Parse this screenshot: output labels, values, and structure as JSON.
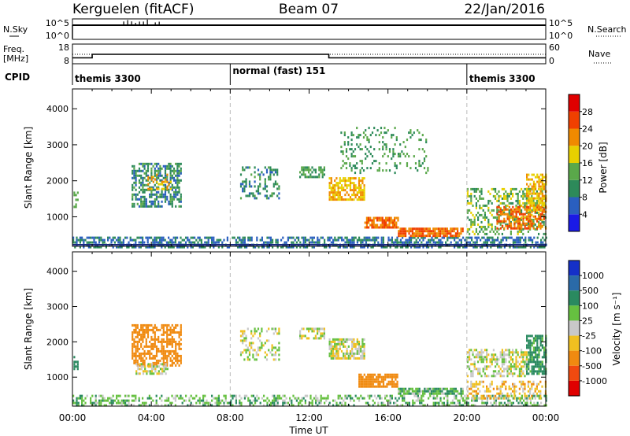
{
  "header": {
    "station": "Kerguelen (fitACF)",
    "beam": "Beam 07",
    "date": "22/Jan/2016"
  },
  "top_panel": {
    "left_label": "N.Sky",
    "right_label": "N.Search",
    "left_ticks": [
      "10^5",
      "10^0"
    ],
    "right_ticks": [
      "10^5",
      "10^0"
    ]
  },
  "freq_panel": {
    "left_label_line1": "Freq.",
    "left_label_line2": "[MHz]",
    "right_label": "Nave",
    "left_ticks": [
      "18",
      "8"
    ],
    "right_ticks": [
      "60",
      "0"
    ],
    "cpid_label": "CPID"
  },
  "cpid_segments": [
    {
      "start_hour": 0,
      "end_hour": 8,
      "label": "themis 3300"
    },
    {
      "start_hour": 8,
      "end_hour": 20,
      "label": "normal (fast) 151"
    },
    {
      "start_hour": 20,
      "end_hour": 24,
      "label": "themis 3300"
    }
  ],
  "time_axis": {
    "label": "Time UT",
    "ticks": [
      "00:00",
      "04:00",
      "08:00",
      "12:00",
      "16:00",
      "20:00",
      "00:00"
    ],
    "range_hours": [
      0,
      24
    ]
  },
  "range_axis": {
    "label": "Slant Range [km]",
    "ticks": [
      1000,
      2000,
      3000,
      4000
    ],
    "range_km": [
      180,
      4550
    ]
  },
  "power_colorbar": {
    "label": "Power [dB]",
    "ticks": [
      "28",
      "24",
      "20",
      "16",
      "12",
      "8",
      "4"
    ],
    "colors": [
      "#1a1ae6",
      "#2a5fbf",
      "#2d8a5a",
      "#5aa84a",
      "#e8d000",
      "#f08a00",
      "#f04000",
      "#e00000"
    ]
  },
  "velocity_colorbar": {
    "label": "Velocity [m s⁻¹]",
    "ticks": [
      "1000",
      "500",
      "100",
      "25",
      "-25",
      "-100",
      "-500",
      "-1000"
    ],
    "colors": [
      "#1530c8",
      "#2a6aa8",
      "#2a8a60",
      "#66c040",
      "#c8c8c8",
      "#f0c020",
      "#f08a10",
      "#f04a10",
      "#e00000"
    ]
  },
  "chart_data": [
    {
      "type": "heatmap",
      "title": "Power",
      "xlabel": "Time UT",
      "ylabel": "Slant Range [km]",
      "x_range_hours": [
        0,
        24
      ],
      "y_range_km": [
        180,
        4550
      ],
      "echo_regions": [
        {
          "t0": 0.0,
          "t1": 24.0,
          "r0": 180,
          "r1": 450,
          "value_db": 8,
          "density": 0.55
        },
        {
          "t0": 0.05,
          "t1": 0.25,
          "r0": 1300,
          "r1": 1700,
          "value_db": 12,
          "density": 0.5
        },
        {
          "t0": 3.0,
          "t1": 5.5,
          "r0": 1300,
          "r1": 2500,
          "value_db": 10,
          "density": 0.6
        },
        {
          "t0": 3.8,
          "t1": 5.0,
          "r0": 1800,
          "r1": 2200,
          "value_db": 20,
          "density": 0.3
        },
        {
          "t0": 8.5,
          "t1": 10.5,
          "r0": 1500,
          "r1": 2400,
          "value_db": 10,
          "density": 0.3
        },
        {
          "t0": 11.5,
          "t1": 12.8,
          "r0": 2100,
          "r1": 2400,
          "value_db": 12,
          "density": 0.5
        },
        {
          "t0": 13.0,
          "t1": 14.8,
          "r0": 1500,
          "r1": 2100,
          "value_db": 20,
          "density": 0.75
        },
        {
          "t0": 14.8,
          "t1": 16.5,
          "r0": 700,
          "r1": 1000,
          "value_db": 24,
          "density": 0.8
        },
        {
          "t0": 16.5,
          "t1": 19.8,
          "r0": 500,
          "r1": 700,
          "value_db": 24,
          "density": 0.85
        },
        {
          "t0": 13.5,
          "t1": 18.0,
          "r0": 2200,
          "r1": 3500,
          "value_db": 12,
          "density": 0.18
        },
        {
          "t0": 20.0,
          "t1": 24.0,
          "r0": 500,
          "r1": 1800,
          "value_db": 14,
          "density": 0.4
        },
        {
          "t0": 21.5,
          "t1": 24.0,
          "r0": 700,
          "r1": 1300,
          "value_db": 24,
          "density": 0.6
        },
        {
          "t0": 23.0,
          "t1": 24.0,
          "r0": 1200,
          "r1": 2200,
          "value_db": 20,
          "density": 0.6
        }
      ]
    },
    {
      "type": "heatmap",
      "title": "Velocity",
      "xlabel": "Time UT",
      "ylabel": "Slant Range [km]",
      "x_range_hours": [
        0,
        24
      ],
      "y_range_km": [
        180,
        4550
      ],
      "echo_regions": [
        {
          "t0": 0.0,
          "t1": 24.0,
          "r0": 180,
          "r1": 500,
          "value_ms": 60,
          "density": 0.45
        },
        {
          "t0": 0.05,
          "t1": 0.25,
          "r0": 1200,
          "r1": 1600,
          "value_ms": 200,
          "density": 0.5
        },
        {
          "t0": 3.0,
          "t1": 5.5,
          "r0": 1300,
          "r1": 2500,
          "value_ms": -200,
          "density": 0.6
        },
        {
          "t0": 3.2,
          "t1": 4.8,
          "r0": 1100,
          "r1": 1400,
          "value_ms": 0,
          "density": 0.6
        },
        {
          "t0": 8.5,
          "t1": 10.5,
          "r0": 1500,
          "r1": 2400,
          "value_ms": 0,
          "density": 0.3
        },
        {
          "t0": 11.5,
          "t1": 12.8,
          "r0": 2100,
          "r1": 2400,
          "value_ms": 0,
          "density": 0.6
        },
        {
          "t0": 13.0,
          "t1": 14.8,
          "r0": 1500,
          "r1": 2100,
          "value_ms": 0,
          "density": 0.75
        },
        {
          "t0": 14.5,
          "t1": 16.5,
          "r0": 700,
          "r1": 1100,
          "value_ms": -200,
          "density": 0.8
        },
        {
          "t0": 16.5,
          "t1": 19.8,
          "r0": 500,
          "r1": 700,
          "value_ms": 60,
          "density": 0.85
        },
        {
          "t0": 20.0,
          "t1": 23.0,
          "r0": 1000,
          "r1": 1800,
          "value_ms": 0,
          "density": 0.55
        },
        {
          "t0": 20.0,
          "t1": 24.0,
          "r0": 400,
          "r1": 900,
          "value_ms": -60,
          "density": 0.45
        },
        {
          "t0": 23.0,
          "t1": 24.0,
          "r0": 1100,
          "r1": 2200,
          "value_ms": 150,
          "density": 0.7
        }
      ]
    }
  ]
}
